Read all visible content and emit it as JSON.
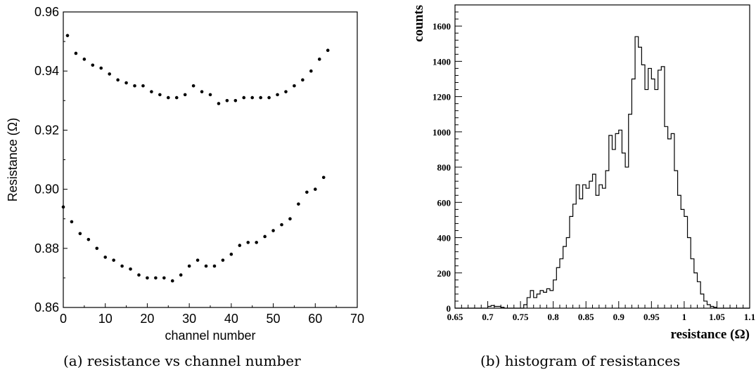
{
  "chart_data": [
    {
      "type": "scatter",
      "xlabel": "channel number",
      "ylabel": "Resistance (Ω)",
      "xlim": [
        0,
        70
      ],
      "ylim": [
        0.86,
        0.96
      ],
      "xticks": [
        "0",
        "10",
        "20",
        "30",
        "40",
        "50",
        "60",
        "70"
      ],
      "yticks": [
        "0.86",
        "0.88",
        "0.90",
        "0.92",
        "0.94",
        "0.96"
      ],
      "series": [
        {
          "x": [
            1,
            3,
            5,
            7,
            9,
            11,
            13,
            15,
            17,
            19,
            21,
            23,
            25,
            27,
            29,
            31,
            33,
            35,
            37,
            39,
            41,
            43,
            45,
            47,
            49,
            51,
            53,
            55,
            57,
            59,
            61,
            63
          ],
          "y": [
            0.952,
            0.946,
            0.944,
            0.942,
            0.941,
            0.939,
            0.937,
            0.936,
            0.935,
            0.935,
            0.933,
            0.932,
            0.931,
            0.931,
            0.932,
            0.935,
            0.933,
            0.932,
            0.929,
            0.93,
            0.93,
            0.931,
            0.931,
            0.931,
            0.931,
            0.932,
            0.933,
            0.935,
            0.937,
            0.94,
            0.944,
            0.947
          ]
        },
        {
          "x": [
            0,
            2,
            4,
            6,
            8,
            10,
            12,
            14,
            16,
            18,
            20,
            22,
            24,
            26,
            28,
            30,
            32,
            34,
            36,
            38,
            40,
            42,
            44,
            46,
            48,
            50,
            52,
            54,
            56,
            58,
            60,
            62
          ],
          "y": [
            0.894,
            0.889,
            0.885,
            0.883,
            0.88,
            0.877,
            0.876,
            0.874,
            0.873,
            0.871,
            0.87,
            0.87,
            0.87,
            0.869,
            0.871,
            0.874,
            0.876,
            0.874,
            0.874,
            0.876,
            0.878,
            0.881,
            0.882,
            0.882,
            0.884,
            0.886,
            0.888,
            0.89,
            0.895,
            0.899,
            0.9,
            0.904
          ]
        }
      ],
      "caption": "(a) resistance vs channel number"
    },
    {
      "type": "histogram",
      "xlabel": "resistance (Ω)",
      "ylabel": "counts",
      "xlim": [
        0.65,
        1.1
      ],
      "ylim": [
        0,
        1720
      ],
      "xticks": [
        "0.65",
        "0.7",
        "0.75",
        "0.8",
        "0.85",
        "0.9",
        "0.95",
        "1",
        "1.05",
        "1.1"
      ],
      "yticks": [
        "0",
        "200",
        "400",
        "600",
        "800",
        "1000",
        "1200",
        "1400",
        "1600"
      ],
      "bin_start": 0.65,
      "bin_width": 0.005,
      "counts": [
        0,
        0,
        0,
        0,
        0,
        0,
        0,
        0,
        0,
        0,
        10,
        15,
        10,
        10,
        5,
        0,
        0,
        0,
        0,
        0,
        0,
        20,
        60,
        100,
        60,
        80,
        100,
        90,
        110,
        100,
        160,
        230,
        280,
        350,
        400,
        520,
        590,
        700,
        620,
        700,
        680,
        720,
        760,
        640,
        700,
        680,
        780,
        980,
        900,
        990,
        1010,
        880,
        800,
        1100,
        1300,
        1540,
        1480,
        1380,
        1240,
        1360,
        1300,
        1240,
        1350,
        1370,
        1030,
        960,
        990,
        780,
        640,
        560,
        520,
        400,
        280,
        200,
        150,
        80,
        40,
        20,
        10,
        5,
        0,
        0,
        0,
        0,
        0,
        0,
        0,
        0,
        0,
        0
      ],
      "caption": "(b) histogram of resistances"
    }
  ]
}
